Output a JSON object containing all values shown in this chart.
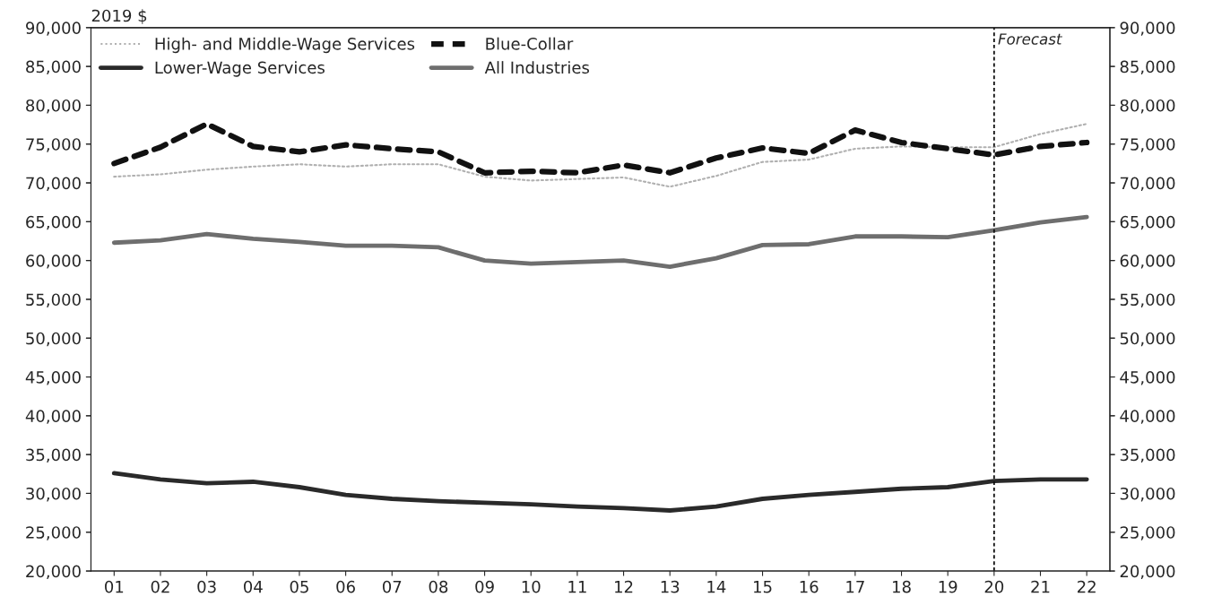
{
  "chart_data": {
    "type": "line",
    "ylabel": "2019 $",
    "categories": [
      "01",
      "02",
      "03",
      "04",
      "05",
      "06",
      "07",
      "08",
      "09",
      "10",
      "11",
      "12",
      "13",
      "14",
      "15",
      "16",
      "17",
      "18",
      "19",
      "20",
      "21",
      "22"
    ],
    "series": [
      {
        "name": "High- and Middle-Wage Services",
        "color": "#b0b0b0",
        "line_style": "dotted",
        "values": [
          70800,
          71100,
          71700,
          72100,
          72400,
          72100,
          72400,
          72400,
          70800,
          70300,
          70500,
          70700,
          69500,
          70900,
          72700,
          73000,
          74400,
          74700,
          74600,
          74600,
          76300,
          77600
        ]
      },
      {
        "name": "Blue-Collar",
        "color": "#111111",
        "line_style": "dashed",
        "values": [
          72500,
          74600,
          77600,
          74700,
          74000,
          74900,
          74400,
          74000,
          71300,
          71500,
          71300,
          72300,
          71300,
          73200,
          74500,
          73800,
          76800,
          75200,
          74400,
          73600,
          74700,
          75200
        ]
      },
      {
        "name": "Lower-Wage Services",
        "color": "#2a2a2a",
        "line_style": "solid",
        "values": [
          32600,
          31800,
          31300,
          31500,
          30800,
          29800,
          29300,
          29000,
          28800,
          28600,
          28300,
          28100,
          27800,
          28300,
          29300,
          29800,
          30200,
          30600,
          30800,
          31600,
          31800,
          31800
        ]
      },
      {
        "name": "All Industries",
        "color": "#6e6e6e",
        "line_style": "solid",
        "values": [
          62300,
          62600,
          63400,
          62800,
          62400,
          61900,
          61900,
          61700,
          60000,
          59600,
          59800,
          60000,
          59200,
          60300,
          62000,
          62100,
          63100,
          63100,
          63000,
          63900,
          64900,
          65600
        ]
      }
    ],
    "ylim": [
      20000,
      90000
    ],
    "yticks": [
      {
        "value": 20000,
        "label": "20,000"
      },
      {
        "value": 25000,
        "label": "25,000"
      },
      {
        "value": 30000,
        "label": "30,000"
      },
      {
        "value": 35000,
        "label": "35,000"
      },
      {
        "value": 40000,
        "label": "40,000"
      },
      {
        "value": 45000,
        "label": "45,000"
      },
      {
        "value": 50000,
        "label": "50,000"
      },
      {
        "value": 55000,
        "label": "55,000"
      },
      {
        "value": 60000,
        "label": "60,000"
      },
      {
        "value": 65000,
        "label": "65,000"
      },
      {
        "value": 70000,
        "label": "70,000"
      },
      {
        "value": 75000,
        "label": "75,000"
      },
      {
        "value": 80000,
        "label": "80,000"
      },
      {
        "value": 85000,
        "label": "85,000"
      },
      {
        "value": 90000,
        "label": "90,000"
      }
    ],
    "y2lim": [
      20000,
      90000
    ],
    "y2ticks": [
      {
        "value": 20000,
        "label": "20,000"
      },
      {
        "value": 25000,
        "label": "25,000"
      },
      {
        "value": 30000,
        "label": "30,000"
      },
      {
        "value": 35000,
        "label": "35,000"
      },
      {
        "value": 40000,
        "label": "40,000"
      },
      {
        "value": 45000,
        "label": "45,000"
      },
      {
        "value": 50000,
        "label": "50,000"
      },
      {
        "value": 55000,
        "label": "55,000"
      },
      {
        "value": 60000,
        "label": "60,000"
      },
      {
        "value": 65000,
        "label": "65,000"
      },
      {
        "value": 70000,
        "label": "70,000"
      },
      {
        "value": 75000,
        "label": "75,000"
      },
      {
        "value": 80000,
        "label": "80,000"
      },
      {
        "value": 85000,
        "label": "85,000"
      },
      {
        "value": 90000,
        "label": "90,000"
      }
    ],
    "ref_lines": [
      {
        "axis": "x",
        "value": "20",
        "label": "Forecast",
        "color": "#111111",
        "line_style": "dashed"
      }
    ],
    "legend": "top left",
    "grid": false,
    "marker": "none"
  }
}
